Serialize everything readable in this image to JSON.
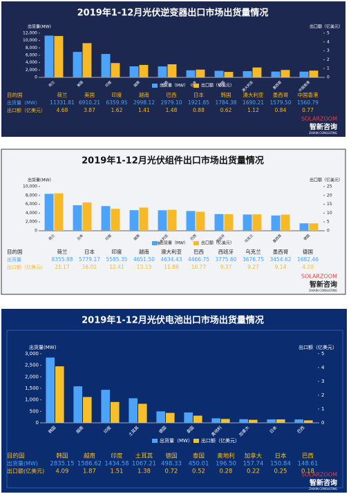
{
  "brand": {
    "en": "SOLARZOOM",
    "cn": "智新咨询",
    "sub": "ZHIXIN CONSULTING"
  },
  "chart_data": [
    {
      "type": "bar",
      "title": "2019年1-12月光伏逆变器出口市场出货量情况",
      "ylabel": "出货量(MW)",
      "y2label": "出口额（亿美元）",
      "categories": [
        "荷兰",
        "美国",
        "印度",
        "越南",
        "巴西",
        "日本",
        "韩国",
        "澳大利亚",
        "墨西哥",
        "中国香港"
      ],
      "series": [
        {
          "name": "出货量（MW）",
          "color": "#4da3f7",
          "values": [
            11331.81,
            6910.21,
            6359.95,
            2998.12,
            2979.1,
            1921.85,
            1784.38,
            1690.21,
            1579.5,
            1560.79
          ],
          "value_labels": [
            "11331.81",
            "6910.21",
            "6359.95",
            "2998.12",
            "2979.10",
            "1921.85",
            "1784.38",
            "1690.21",
            "1579.50",
            "1560.79"
          ]
        },
        {
          "name": "出口额（亿美元）",
          "color": "#f6b928",
          "axis": "y2",
          "values": [
            4.68,
            3.87,
            1.62,
            1.41,
            1.48,
            0.88,
            0.62,
            1.12,
            0.84,
            0.77
          ],
          "value_labels": [
            "4.68",
            "3.87",
            "1.62",
            "1.41",
            "1.48",
            "0.88",
            "0.62",
            "1.12",
            "0.84",
            "0.77"
          ]
        }
      ],
      "ylim": [
        0,
        12000
      ],
      "yticks": [
        0,
        {
          "value": 2000,
          "label": "2,000"
        },
        {
          "value": 4000,
          "label": "4,000"
        },
        {
          "value": 6000,
          "label": "6,000"
        },
        {
          "value": 8000,
          "label": "8,000"
        },
        {
          "value": 10000,
          "label": "10,000"
        },
        {
          "value": 12000,
          "label": "12,000"
        }
      ],
      "y2lim": [
        0,
        5
      ],
      "y2ticks": [
        0,
        1,
        2,
        3,
        4,
        5
      ],
      "table": {
        "header": "目的国",
        "row_labels": [
          "出货量（MW）",
          "出口额（亿美元）"
        ]
      }
    },
    {
      "type": "bar",
      "title": "2019年1-12月光伏组件出口市场出货量情况",
      "ylabel": "出货量(MW)",
      "y2label": "出口额（亿美元）",
      "categories": [
        "荷兰",
        "日本",
        "印度",
        "越南",
        "澳大利亚",
        "巴西",
        "西班牙",
        "乌克兰",
        "墨西哥",
        "德国"
      ],
      "series": [
        {
          "name": "出货量（MW）",
          "color": "#4da3f7",
          "values": [
            8355.88,
            5779.17,
            5585.35,
            4651.5,
            4634.43,
            4466.75,
            3775.6,
            3676.75,
            3454.62,
            1682.46
          ],
          "value_labels": [
            "8355.88",
            "5779.17",
            "5585.35",
            "4651.50",
            "4634.43",
            "4466.75",
            "3775.60",
            "3676.75",
            "3454.62",
            "1682.46"
          ]
        },
        {
          "name": "出口额（亿美元）",
          "color": "#f6b928",
          "axis": "y2",
          "values": [
            21.17,
            16.01,
            12.41,
            13.13,
            11.88,
            10.77,
            9.37,
            9.27,
            9.14,
            4.2
          ],
          "value_labels": [
            "21.17",
            "16.01",
            "12.41",
            "13.13",
            "11.88",
            "10.77",
            "9.37",
            "9.27",
            "9.14",
            "4.20"
          ]
        }
      ],
      "ylim": [
        0,
        10000
      ],
      "yticks": [
        0,
        {
          "value": 2000,
          "label": "2,000"
        },
        {
          "value": 4000,
          "label": "4,000"
        },
        {
          "value": 6000,
          "label": "6,000"
        },
        {
          "value": 8000,
          "label": "8,000"
        },
        {
          "value": 10000,
          "label": "10,000"
        }
      ],
      "y2lim": [
        0,
        25
      ],
      "y2ticks": [
        0,
        5,
        10,
        15,
        20,
        25
      ],
      "table": {
        "header": "目的国",
        "row_labels": [
          "出货量",
          "出口额（亿美元）"
        ]
      }
    },
    {
      "type": "bar",
      "title": "2019年1-12月光伏电池出口市场出货量情况",
      "ylabel": "出货量(MW)",
      "y2label": "出口额（亿美元）",
      "categories": [
        "韩国",
        "越南",
        "印度",
        "土耳其",
        "德国",
        "泰国",
        "奥地利",
        "加拿大",
        "日本",
        "巴西"
      ],
      "series": [
        {
          "name": "出货量（MW）",
          "color": "#4da3f7",
          "values": [
            2835.15,
            1586.62,
            1434.58,
            1067.21,
            498.33,
            450.01,
            196.5,
            157.74,
            150.84,
            148.61
          ],
          "value_labels": [
            "2835.15",
            "1586.62",
            "1434.58",
            "1067.21",
            "498.33",
            "450.01",
            "196.50",
            "157.74",
            "150.84",
            "148.61"
          ]
        },
        {
          "name": "出口额（亿美元）",
          "color": "#f6c02a",
          "axis": "y2",
          "values": [
            4.09,
            1.87,
            1.51,
            1.38,
            0.72,
            0.52,
            0.28,
            0.22,
            0.25,
            0.18
          ],
          "value_labels": [
            "4.09",
            "1.87",
            "1.51",
            "1.38",
            "0.72",
            "0.52",
            "0.28",
            "0.22",
            "0.25",
            "0.18"
          ]
        }
      ],
      "ylim": [
        0,
        3000
      ],
      "yticks": [
        0,
        500,
        {
          "value": 1000,
          "label": "1,000"
        },
        {
          "value": 1500,
          "label": "1,500"
        },
        {
          "value": 2000,
          "label": "2,000"
        },
        {
          "value": 2500,
          "label": "2,500"
        },
        {
          "value": 3000,
          "label": "3,000"
        }
      ],
      "y2lim": [
        0,
        5
      ],
      "y2ticks": [
        0,
        1,
        2,
        3,
        4,
        5
      ],
      "table": {
        "header": "目的国",
        "row_labels": [
          "出货量(MW)",
          "出口额(亿美元)"
        ]
      }
    }
  ]
}
